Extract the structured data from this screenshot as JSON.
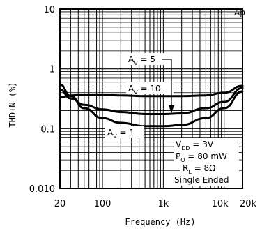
{
  "chart_data": {
    "type": "line",
    "xlabel": "Frequency (Hz)",
    "ylabel": "THD+N (%)",
    "x_scale": "log",
    "y_scale": "log",
    "xlim": [
      20,
      20000
    ],
    "ylim": [
      0.01,
      10
    ],
    "x_ticks": [
      "20",
      "100",
      "1k",
      "10k",
      "20k"
    ],
    "y_ticks": [
      "10",
      "1",
      "0.1",
      "0.010"
    ],
    "grid": true,
    "logo": "Ap",
    "conditions": [
      "V_DD = 3V",
      "P_O = 80 mW",
      "R_L = 8Ω",
      "Single Ended"
    ],
    "series": [
      {
        "name": "A_V = 5",
        "x": [
          20,
          30,
          50,
          100,
          200,
          500,
          1000,
          2000,
          5000,
          10000,
          20000
        ],
        "y": [
          0.45,
          0.32,
          0.25,
          0.21,
          0.19,
          0.175,
          0.175,
          0.18,
          0.22,
          0.28,
          0.48
        ]
      },
      {
        "name": "A_V = 10",
        "x": [
          20,
          30,
          50,
          100,
          200,
          500,
          1000,
          2000,
          5000,
          10000,
          20000
        ],
        "y": [
          0.33,
          0.36,
          0.37,
          0.37,
          0.36,
          0.35,
          0.35,
          0.35,
          0.36,
          0.4,
          0.52
        ]
      },
      {
        "name": "A_V = 1",
        "x": [
          20,
          30,
          50,
          100,
          200,
          500,
          1000,
          2000,
          5000,
          10000,
          20000
        ],
        "y": [
          0.55,
          0.35,
          0.22,
          0.15,
          0.125,
          0.11,
          0.11,
          0.115,
          0.15,
          0.22,
          0.42
        ]
      }
    ],
    "annotations": {
      "av5": {
        "base": "A",
        "sub": "V",
        "rest": " = 5"
      },
      "av10": {
        "base": "A",
        "sub": "V",
        "rest": " = 10"
      },
      "av1": {
        "base": "A",
        "sub": "V",
        "rest": " = 1"
      },
      "vdd": {
        "base": "V",
        "sub": "DD",
        "rest": " = 3V"
      },
      "po": {
        "base": "P",
        "sub": "O",
        "rest": " = 80 mW"
      },
      "rl": {
        "base": "R",
        "sub": "L",
        "rest": " = 8Ω"
      },
      "mode": {
        "base": "Single Ended",
        "sub": "",
        "rest": ""
      }
    }
  }
}
